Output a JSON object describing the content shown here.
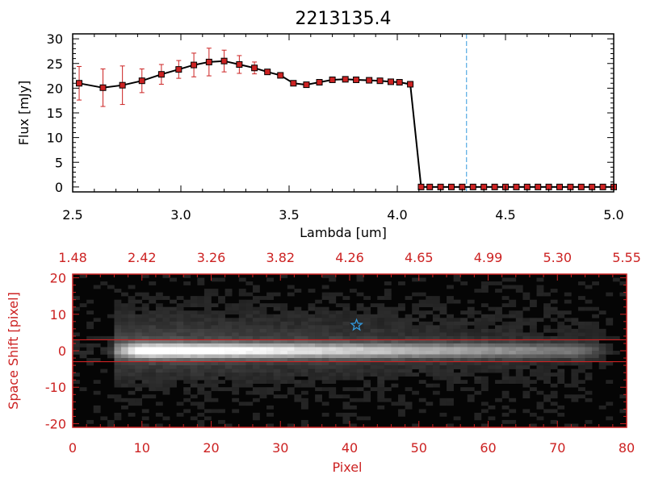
{
  "chart_data": [
    {
      "type": "line",
      "title": "2213135.4",
      "xlabel": "Lambda [um]",
      "ylabel": "Flux [mJy]",
      "xlim": [
        2.5,
        5.0
      ],
      "ylim": [
        -1,
        31
      ],
      "xticks": [
        "2.5",
        "3.0",
        "3.5",
        "4.0",
        "4.5",
        "5.0"
      ],
      "yticks": [
        "0",
        "5",
        "10",
        "15",
        "20",
        "25",
        "30"
      ],
      "grid": false,
      "marker": "square",
      "line_color": "#000000",
      "marker_color": "#cc2222",
      "errorbar_color": "#cc2222",
      "vline": {
        "x": 4.32,
        "color": "#3399dd",
        "style": "dashed"
      },
      "zero_line_color": "#cc2222",
      "series": [
        {
          "x": [
            2.53,
            2.64,
            2.73,
            2.82,
            2.91,
            2.99,
            3.06,
            3.13,
            3.2,
            3.27,
            3.34,
            3.4,
            3.46,
            3.52,
            3.58,
            3.64,
            3.7,
            3.76,
            3.81,
            3.87,
            3.92,
            3.97,
            4.01,
            4.06,
            4.11,
            4.15,
            4.2,
            4.25,
            4.3,
            4.35,
            4.4,
            4.45,
            4.5,
            4.55,
            4.6,
            4.65,
            4.7,
            4.75,
            4.8,
            4.85,
            4.9,
            4.95,
            5.0
          ],
          "y": [
            21.0,
            20.1,
            20.6,
            21.5,
            22.8,
            23.8,
            24.7,
            25.3,
            25.5,
            24.8,
            24.1,
            23.3,
            22.6,
            21.0,
            20.7,
            21.2,
            21.7,
            21.8,
            21.7,
            21.6,
            21.5,
            21.3,
            21.2,
            20.8,
            0,
            0,
            0,
            0,
            0,
            0,
            0,
            0,
            0,
            0,
            0,
            0,
            0,
            0,
            0,
            0,
            0,
            0,
            0
          ],
          "yerr": [
            3.4,
            3.8,
            3.9,
            2.4,
            2.0,
            1.8,
            2.4,
            2.8,
            2.2,
            1.8,
            1.2,
            0.5,
            0.4,
            0.4,
            0.3,
            0.3,
            0.3,
            0.3,
            0.3,
            0.3,
            0.3,
            0.3,
            0.3,
            0.3,
            0,
            0,
            0,
            0,
            0,
            0,
            0,
            0,
            0,
            0,
            0,
            0,
            0,
            0,
            0,
            0,
            0,
            0,
            0
          ]
        }
      ]
    },
    {
      "type": "heatmap",
      "xlabel": "Pixel",
      "ylabel": "Space Shift [pixel]",
      "xlim": [
        0,
        80
      ],
      "ylim": [
        -21,
        21
      ],
      "xticks": [
        "0",
        "10",
        "20",
        "30",
        "40",
        "50",
        "60",
        "70",
        "80"
      ],
      "yticks": [
        "-20",
        "-10",
        "0",
        "10",
        "20"
      ],
      "top_axis_ticks": [
        "1.48",
        "2.42",
        "3.26",
        "3.82",
        "4.26",
        "4.65",
        "4.99",
        "5.30",
        "5.55"
      ],
      "axis_color": "#cc2222",
      "colormap": "grayscale",
      "aperture_lines_y": [
        3,
        -3
      ],
      "aperture_line_color": "#cc2222",
      "source_marker": {
        "type": "star",
        "x": 41,
        "y": 7,
        "color": "#3399dd"
      }
    }
  ]
}
